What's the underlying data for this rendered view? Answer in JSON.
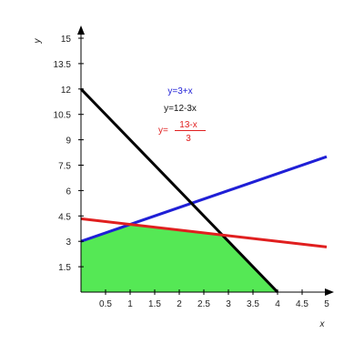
{
  "chart_data": {
    "type": "line",
    "xlabel": "x",
    "ylabel": "y",
    "xlim": [
      0,
      5
    ],
    "ylim": [
      0,
      15
    ],
    "x_ticks": [
      0.5,
      1,
      1.5,
      2,
      2.5,
      3,
      3.5,
      4,
      4.5,
      5
    ],
    "y_ticks": [
      1.5,
      3,
      4.5,
      6,
      7.5,
      9,
      10.5,
      12,
      13.5,
      15
    ],
    "x_tick_labels": [
      "0.5",
      "1",
      "1.5",
      "2",
      "2.5",
      "3",
      "3.5",
      "4",
      "4.5",
      "5"
    ],
    "y_tick_labels": [
      "1.5",
      "3",
      "4.5",
      "6",
      "7.5",
      "9",
      "10.5",
      "12",
      "13.5",
      "15"
    ],
    "grid": false,
    "series": [
      {
        "name": "y=3+x",
        "color": "#1f1fd6",
        "x": [
          0,
          5
        ],
        "y": [
          3,
          8
        ]
      },
      {
        "name": "y=12-3x",
        "color": "#000000",
        "x": [
          0,
          4
        ],
        "y": [
          12,
          0
        ]
      },
      {
        "name": "y=(13-x)/3",
        "color": "#e01f1f",
        "x": [
          0,
          5
        ],
        "y": [
          4.3333,
          2.6667
        ]
      }
    ],
    "feasible_region": {
      "color": "#55e855",
      "points": [
        [
          0,
          0
        ],
        [
          0,
          3
        ],
        [
          1,
          4
        ],
        [
          2.875,
          3.375
        ],
        [
          4,
          0
        ]
      ]
    },
    "equation_labels": {
      "blue": "y=3+x",
      "black": "y=12-3x",
      "red_prefix": "y=",
      "red_numerator": "13-x",
      "red_denominator": "3"
    }
  }
}
